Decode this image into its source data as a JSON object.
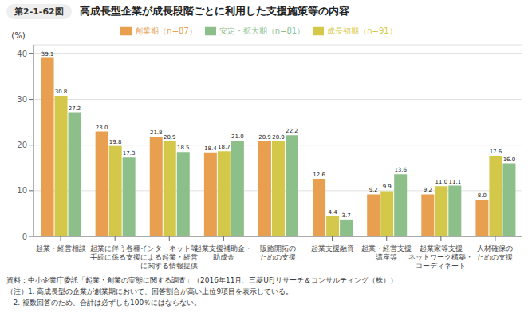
{
  "chart_data": {
    "type": "bar",
    "title": "高成長型企業が成長段階ごとに利用した支援施策等の内容",
    "title_prefix": "第2-1-62図",
    "categories": [
      "起業・経営相談",
      "起業に伴う各種\n手続に係る支援",
      "インターネット等\nによる起業・経営\nに関する情報提供",
      "起業支援補助金・\n助成金",
      "販路開拓の\nための支援",
      "起業支援融資",
      "起業・経営支援\n講座等",
      "起業家等支援\nネットワーク構築・\nコーディネート",
      "人材確保の\nための支援"
    ],
    "series": [
      {
        "name": "創業期（n=87）",
        "color": "#E8A050",
        "values": [
          39.1,
          23.0,
          21.8,
          18.4,
          20.9,
          12.6,
          9.2,
          9.2,
          8.0
        ],
        "value_labels": [
          "39.1",
          "23.0",
          "21.8",
          "18.4",
          "20.9",
          "12.6",
          "9.2",
          "9.2",
          "8.0"
        ]
      },
      {
        "name": "成長初期（n=91）",
        "color": "#D4C84A",
        "values": [
          30.8,
          19.8,
          20.9,
          18.7,
          20.9,
          4.4,
          9.9,
          11.0,
          17.6
        ],
        "value_labels": [
          "30.8",
          "19.8",
          "20.9",
          "18.7",
          "20.9",
          "4.4",
          "9.9",
          "11.0",
          "17.6"
        ]
      },
      {
        "name": "安定・拡大期（n=81）",
        "color": "#8DBF8A",
        "values": [
          27.2,
          17.3,
          18.5,
          21.0,
          22.2,
          3.7,
          13.6,
          11.1,
          16.0
        ],
        "value_labels": [
          "27.2",
          "17.3",
          "18.5",
          "21.0",
          "22.2",
          "3.7",
          "13.6",
          "11.1",
          "16.0"
        ]
      }
    ],
    "ylabel": "(%)",
    "ylim": [
      0,
      42
    ],
    "yticks": [
      0,
      10,
      20,
      30,
      40
    ],
    "grid": true,
    "legend": "top",
    "data_labels": true,
    "annotations": [
      "資料：中小企業庁委託「起業・創業の実態に関する調査」（2016年11月、三菱UFJリサーチ＆コンサルティング（株））",
      "（注）1. 高成長型の企業が創業期において、回答割合が高い上位9項目を表示している。",
      "   2. 複数回答のため、合計は必ずしも100％にはならない。"
    ]
  }
}
